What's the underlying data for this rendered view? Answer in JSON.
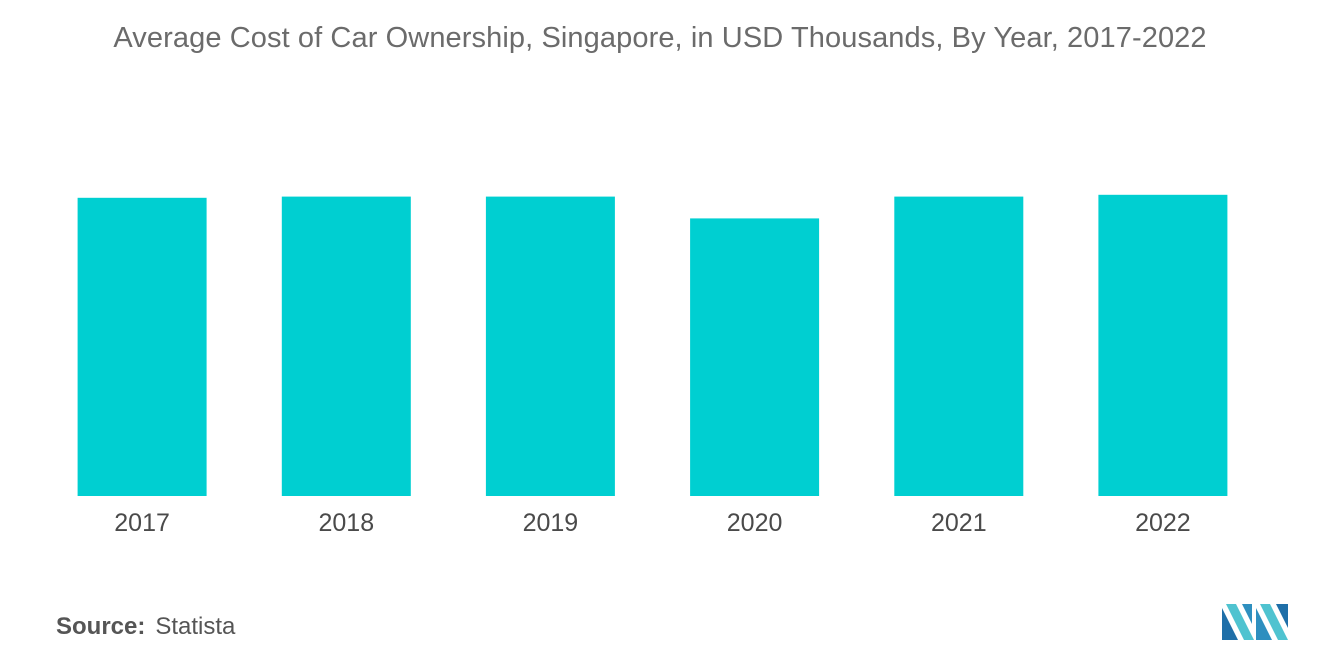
{
  "title": "Average Cost of Car Ownership, Singapore, in USD Thousands, By Year, 2017-2022",
  "source": {
    "label": "Source:",
    "value": "Statista"
  },
  "logo": {
    "icon": "mordor-intelligence-logo-icon",
    "colors": [
      "#2e8fbf",
      "#4fc3d0",
      "#1f6fa8"
    ]
  },
  "colors": {
    "bar": "#00cfd1",
    "title": "#6b6b6b",
    "tick_label": "#4a4a4a"
  },
  "chart_data": {
    "type": "bar",
    "title": "Average Cost of Car Ownership, Singapore, in USD Thousands, By Year, 2017-2022",
    "xlabel": "",
    "ylabel": "",
    "categories": [
      "2017",
      "2018",
      "2019",
      "2020",
      "2021",
      "2022"
    ],
    "values": [
      100,
      100.4,
      100.4,
      93.1,
      100.4,
      101
    ],
    "ylim": [
      0,
      110
    ],
    "grid": false,
    "legend": "none",
    "y_axis_visible": false
  }
}
